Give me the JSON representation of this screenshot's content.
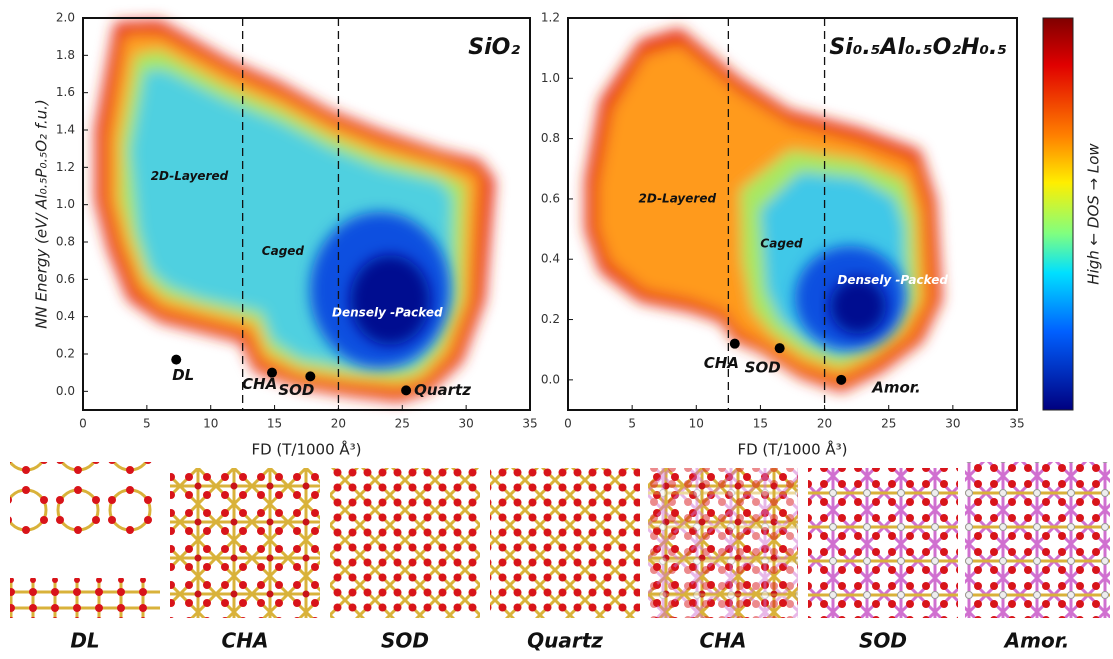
{
  "chart_data": [
    {
      "type": "scatter",
      "title": "SiO₂",
      "ylabel": "NN Energy (eV/ Al₀.₅P₀.₅O₂ f.u.)",
      "xlabel": "FD (T/1000 Å³)",
      "xlim": [
        0,
        35
      ],
      "xticks": [
        0,
        5,
        10,
        15,
        20,
        25,
        30,
        35
      ],
      "ylim": [
        -0.1,
        2.0
      ],
      "yticks": [
        {
          "value": 0,
          "label": "0.0"
        },
        0.2,
        0.4,
        0.6,
        0.8,
        {
          "value": 1,
          "label": "1.0"
        },
        1.2,
        1.4,
        1.6,
        1.8,
        {
          "value": 2,
          "label": "2.0"
        }
      ],
      "vlines": [
        12.5,
        20
      ],
      "regions": [
        "2D-Layered",
        "Caged",
        "Densely -Packed"
      ],
      "points": {
        "labels": [
          "DL",
          "CHA",
          "SOD",
          "Quartz"
        ],
        "x": [
          7.3,
          14.8,
          17.8,
          25.3
        ],
        "y": [
          0.17,
          0.1,
          0.08,
          0.005
        ]
      }
    },
    {
      "type": "scatter",
      "title": "Si₀.₅Al₀.₅O₂H₀.₅",
      "xlabel": "FD (T/1000 Å³)",
      "xlim": [
        0,
        35
      ],
      "xticks": [
        0,
        5,
        10,
        15,
        20,
        25,
        30,
        35
      ],
      "ylim": [
        -0.1,
        1.2
      ],
      "yticks": [
        {
          "value": 0,
          "label": "0.0"
        },
        0.2,
        0.4,
        0.6,
        0.8,
        {
          "value": 1,
          "label": "1.0"
        },
        1.2
      ],
      "vlines": [
        12.5,
        20
      ],
      "regions": [
        "2D-Layered",
        "Caged",
        "Densely -Packed"
      ],
      "points": {
        "labels": [
          "CHA",
          "SOD",
          "Amor."
        ],
        "x": [
          13,
          16.5,
          21.3
        ],
        "y": [
          0.12,
          0.105,
          0
        ]
      }
    }
  ],
  "colorbar": {
    "label": "High ← DOS → Low"
  },
  "structures": [
    "DL",
    "CHA",
    "SOD",
    "Quartz",
    "CHA",
    "SOD",
    "Amor."
  ]
}
